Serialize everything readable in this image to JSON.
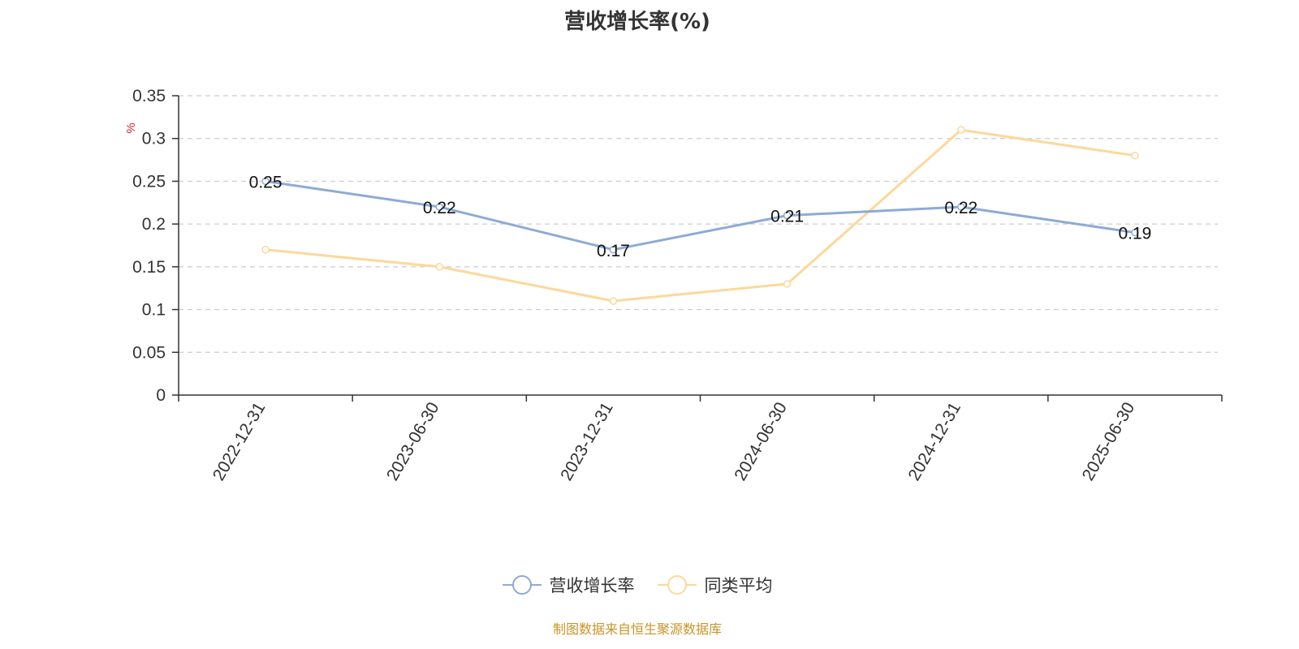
{
  "chart_data": {
    "type": "line",
    "title": "营收增长率(%)",
    "ylabel": "%",
    "categories": [
      "2022-12-31",
      "2023-06-30",
      "2023-12-31",
      "2024-06-30",
      "2024-12-31",
      "2025-06-30"
    ],
    "ylim": [
      0,
      0.35
    ],
    "yticks": [
      "0",
      "0.05",
      "0.1",
      "0.15",
      "0.2",
      "0.25",
      "0.3",
      "0.35"
    ],
    "grid": true,
    "legend_position": "bottom",
    "series": [
      {
        "name": "营收增长率",
        "color": "#8eaad6",
        "values": [
          0.25,
          0.22,
          0.17,
          0.21,
          0.22,
          0.19
        ],
        "data_labels": [
          "0.25",
          "0.22",
          "0.17",
          "0.21",
          "0.22",
          "0.19"
        ]
      },
      {
        "name": "同类平均",
        "color": "#fdd89b",
        "values": [
          0.17,
          0.15,
          0.11,
          0.13,
          0.31,
          0.28
        ]
      }
    ]
  },
  "source_note": "制图数据来自恒生聚源数据库"
}
